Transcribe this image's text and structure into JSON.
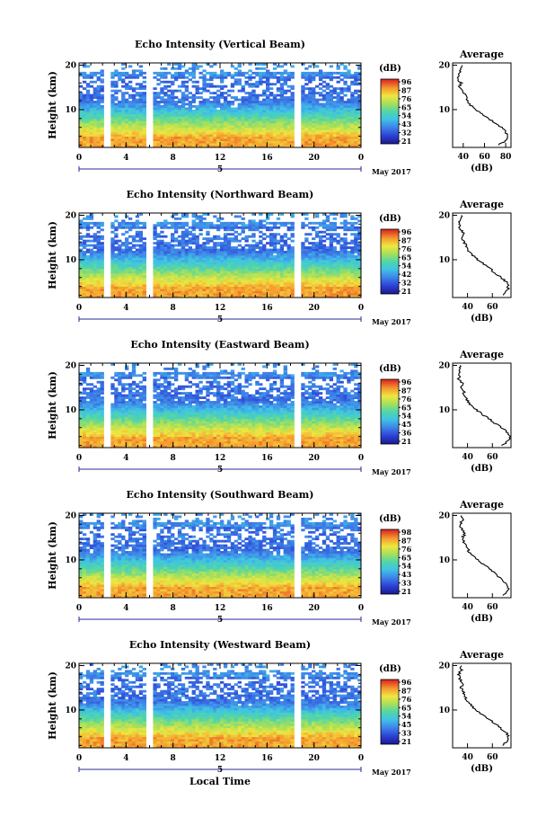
{
  "figure": {
    "date_label": "May 2017",
    "day_label": "5",
    "x_axis_label": "Local Time",
    "y_axis_label": "Height (km)",
    "colorbar_unit": "(dB)",
    "colorbar_ticks": [
      "96",
      "87",
      "76",
      "65",
      "54",
      "43",
      "32",
      "21"
    ],
    "colorbar_ticks_alt": [
      "96",
      "87",
      "76",
      "65",
      "54",
      "42",
      "32",
      "21"
    ],
    "colorbar_ticks_east": [
      "96",
      "87",
      "76",
      "65",
      "54",
      "45",
      "36",
      "21"
    ],
    "colorbar_ticks_south": [
      "98",
      "87",
      "76",
      "65",
      "54",
      "43",
      "33",
      "21"
    ],
    "colorbar_ticks_west": [
      "96",
      "87",
      "76",
      "65",
      "54",
      "45",
      "33",
      "21"
    ],
    "average_title": "Average",
    "average_unit": "(dB)"
  },
  "chart_data": [
    {
      "type": "heatmap",
      "title": "Echo Intensity (Vertical Beam)",
      "xlabel": "",
      "ylabel": "Height (km)",
      "x_ticks": [
        "0",
        "4",
        "8",
        "12",
        "16",
        "20",
        "0"
      ],
      "y_ticks": [
        "10",
        "20"
      ],
      "xlim": [
        0,
        24
      ],
      "ylim": [
        1.5,
        20.5
      ],
      "colorbar_range_db": [
        21,
        96
      ],
      "data_gaps_hours": [
        [
          2.2,
          2.6
        ],
        [
          5.8,
          6.3
        ],
        [
          18.2,
          18.8
        ]
      ],
      "profile": {
        "title": "Average",
        "xlabel": "(dB)",
        "x_ticks": [
          "40",
          "60",
          "80"
        ],
        "xlim": [
          30,
          85
        ],
        "height_km": [
          2,
          3,
          4,
          5,
          6,
          7,
          8,
          9,
          10,
          11,
          12,
          13,
          14,
          15,
          16,
          17,
          18,
          19,
          20
        ],
        "db": [
          73,
          80,
          82,
          80,
          76,
          70,
          64,
          58,
          52,
          47,
          44,
          43,
          40,
          36,
          38,
          34,
          36,
          38,
          39
        ]
      }
    },
    {
      "type": "heatmap",
      "title": "Echo Intensity (Northward Beam)",
      "xlabel": "",
      "ylabel": "Height (km)",
      "x_ticks": [
        "0",
        "4",
        "8",
        "12",
        "16",
        "20",
        "0"
      ],
      "y_ticks": [
        "10",
        "20"
      ],
      "xlim": [
        0,
        24
      ],
      "ylim": [
        1.5,
        20.5
      ],
      "colorbar_range_db": [
        21,
        96
      ],
      "data_gaps_hours": [
        [
          2.2,
          2.6
        ],
        [
          5.8,
          6.3
        ],
        [
          18.2,
          18.8
        ]
      ],
      "profile": {
        "title": "Average",
        "xlabel": "(dB)",
        "x_ticks": [
          "40",
          "60"
        ],
        "xlim": [
          28,
          75
        ],
        "height_km": [
          2,
          3,
          4,
          5,
          6,
          7,
          8,
          9,
          10,
          11,
          12,
          13,
          14,
          15,
          16,
          17,
          18,
          19,
          20
        ],
        "db": [
          68,
          72,
          73,
          71,
          67,
          62,
          58,
          53,
          48,
          44,
          41,
          39,
          37,
          35,
          37,
          34,
          33,
          34,
          35
        ]
      }
    },
    {
      "type": "heatmap",
      "title": "Echo Intensity (Eastward Beam)",
      "xlabel": "",
      "ylabel": "Height (km)",
      "x_ticks": [
        "0",
        "4",
        "8",
        "12",
        "16",
        "20",
        "0"
      ],
      "y_ticks": [
        "10",
        "20"
      ],
      "xlim": [
        0,
        24
      ],
      "ylim": [
        1.5,
        20.5
      ],
      "colorbar_range_db": [
        21,
        96
      ],
      "data_gaps_hours": [
        [
          2.2,
          2.6
        ],
        [
          5.8,
          6.3
        ],
        [
          18.2,
          18.8
        ]
      ],
      "profile": {
        "title": "Average",
        "xlabel": "(dB)",
        "x_ticks": [
          "40",
          "60"
        ],
        "xlim": [
          28,
          75
        ],
        "height_km": [
          2,
          3,
          4,
          5,
          6,
          7,
          8,
          9,
          10,
          11,
          12,
          13,
          14,
          15,
          16,
          17,
          18,
          19,
          20
        ],
        "db": [
          68,
          73,
          74,
          72,
          67,
          62,
          57,
          52,
          47,
          43,
          40,
          38,
          37,
          35,
          36,
          33,
          34,
          33,
          34
        ]
      }
    },
    {
      "type": "heatmap",
      "title": "Echo Intensity (Southward Beam)",
      "xlabel": "",
      "ylabel": "Height (km)",
      "x_ticks": [
        "0",
        "4",
        "8",
        "12",
        "16",
        "20",
        "0"
      ],
      "y_ticks": [
        "10",
        "20"
      ],
      "xlim": [
        0,
        24
      ],
      "ylim": [
        1.5,
        20.5
      ],
      "colorbar_range_db": [
        21,
        98
      ],
      "data_gaps_hours": [
        [
          2.2,
          2.6
        ],
        [
          5.8,
          6.3
        ],
        [
          18.2,
          18.8
        ]
      ],
      "profile": {
        "title": "Average",
        "xlabel": "(dB)",
        "x_ticks": [
          "40",
          "60"
        ],
        "xlim": [
          28,
          75
        ],
        "height_km": [
          2,
          3,
          4,
          5,
          6,
          7,
          8,
          9,
          10,
          11,
          12,
          13,
          14,
          15,
          16,
          17,
          18,
          19,
          20
        ],
        "db": [
          69,
          73,
          72,
          70,
          66,
          62,
          58,
          53,
          48,
          44,
          41,
          40,
          37,
          36,
          38,
          35,
          34,
          36,
          35
        ]
      }
    },
    {
      "type": "heatmap",
      "title": "Echo Intensity (Westward Beam)",
      "xlabel": "Local Time",
      "ylabel": "Height (km)",
      "x_ticks": [
        "0",
        "4",
        "8",
        "12",
        "16",
        "20",
        "0"
      ],
      "y_ticks": [
        "10",
        "20"
      ],
      "xlim": [
        0,
        24
      ],
      "ylim": [
        1.5,
        20.5
      ],
      "colorbar_range_db": [
        21,
        96
      ],
      "data_gaps_hours": [
        [
          2.2,
          2.6
        ],
        [
          5.8,
          6.3
        ],
        [
          18.2,
          18.8
        ]
      ],
      "profile": {
        "title": "Average",
        "xlabel": "(dB)",
        "x_ticks": [
          "40",
          "60"
        ],
        "xlim": [
          28,
          75
        ],
        "height_km": [
          2,
          3,
          4,
          5,
          6,
          7,
          8,
          9,
          10,
          11,
          12,
          13,
          14,
          15,
          16,
          17,
          18,
          19,
          20
        ],
        "db": [
          68,
          72,
          73,
          71,
          66,
          62,
          57,
          52,
          47,
          43,
          40,
          38,
          37,
          35,
          36,
          34,
          33,
          35,
          35
        ]
      }
    }
  ]
}
